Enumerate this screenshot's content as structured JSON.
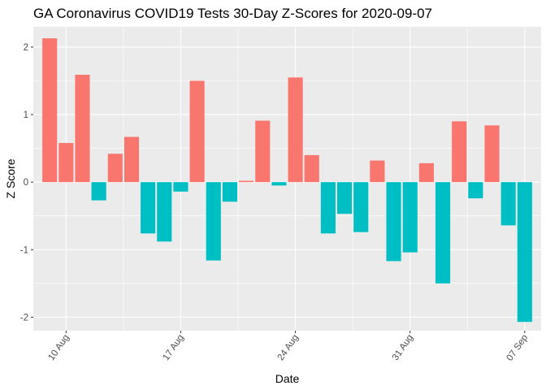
{
  "chart_data": {
    "type": "bar",
    "title": "GA Coronavirus COVID19 Tests 30-Day Z-Scores for 2020-09-07",
    "xlabel": "Date",
    "ylabel": "Z Score",
    "x_type": "date",
    "xlim": [
      "2020-08-08",
      "2020-09-08"
    ],
    "ylim": [
      -2.2,
      2.3
    ],
    "y_ticks": [
      -2,
      -1,
      0,
      1,
      2
    ],
    "x_ticks": [
      {
        "date": "2020-08-10",
        "label": "10 Aug"
      },
      {
        "date": "2020-08-17",
        "label": "17 Aug"
      },
      {
        "date": "2020-08-24",
        "label": "24 Aug"
      },
      {
        "date": "2020-08-31",
        "label": "31 Aug"
      },
      {
        "date": "2020-09-07",
        "label": "07 Sep"
      }
    ],
    "grid": true,
    "legend": "none",
    "colors": {
      "positive": "#F8766D",
      "negative": "#00BFC4",
      "panel": "#EBEBEB",
      "grid": "#FFFFFF"
    },
    "dates": [
      "2020-08-09",
      "2020-08-10",
      "2020-08-11",
      "2020-08-12",
      "2020-08-13",
      "2020-08-14",
      "2020-08-15",
      "2020-08-16",
      "2020-08-17",
      "2020-08-18",
      "2020-08-19",
      "2020-08-20",
      "2020-08-21",
      "2020-08-22",
      "2020-08-23",
      "2020-08-24",
      "2020-08-25",
      "2020-08-26",
      "2020-08-27",
      "2020-08-28",
      "2020-08-29",
      "2020-08-30",
      "2020-08-31",
      "2020-09-01",
      "2020-09-02",
      "2020-09-03",
      "2020-09-04",
      "2020-09-05",
      "2020-09-06",
      "2020-09-07"
    ],
    "values": [
      2.13,
      0.58,
      1.59,
      -0.27,
      0.42,
      0.67,
      -0.76,
      -0.88,
      -0.14,
      1.5,
      -1.16,
      -0.29,
      0.02,
      0.91,
      -0.05,
      1.55,
      0.4,
      -0.76,
      -0.47,
      -0.74,
      0.32,
      -1.17,
      -1.04,
      0.28,
      -1.5,
      0.9,
      -0.24,
      0.84,
      -0.64,
      -2.07
    ]
  }
}
